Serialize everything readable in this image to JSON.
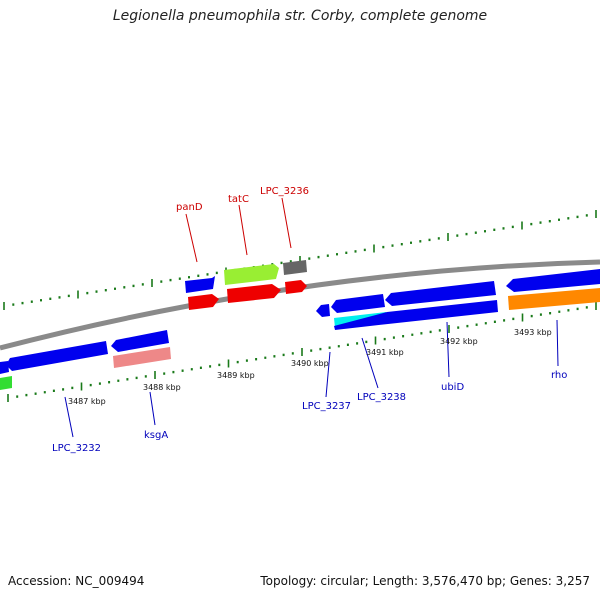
{
  "title": "Legionella pneumophila str. Corby, complete genome",
  "footer": {
    "accession": "Accession: NC_009494",
    "summary": "Topology: circular; Length: 3,576,470 bp; Genes: 3,257"
  },
  "colors": {
    "backbone": "#808080",
    "tick": "#1a7a1a",
    "forward_label": "#cc0000",
    "reverse_label": "#0000bb",
    "blue_gene": "#0000ee",
    "red_gene": "#ee0000",
    "green_gene": "#99ee33",
    "gray_gene": "#666666",
    "pink_gene": "#ee8888",
    "cyan_gene": "#00eeee",
    "orange_gene": "#ff8800",
    "bright_green_gene": "#33dd33"
  },
  "kbp_ticks": [
    "3487 kbp",
    "3488 kbp",
    "3489 kbp",
    "3490 kbp",
    "3491 kbp",
    "3492 kbp",
    "3493 kbp"
  ],
  "forward_labels": [
    "panD",
    "tatC",
    "LPC_3236"
  ],
  "reverse_labels": [
    "LPC_3232",
    "ksgA",
    "LPC_3237",
    "LPC_3238",
    "ubiD",
    "rho"
  ]
}
